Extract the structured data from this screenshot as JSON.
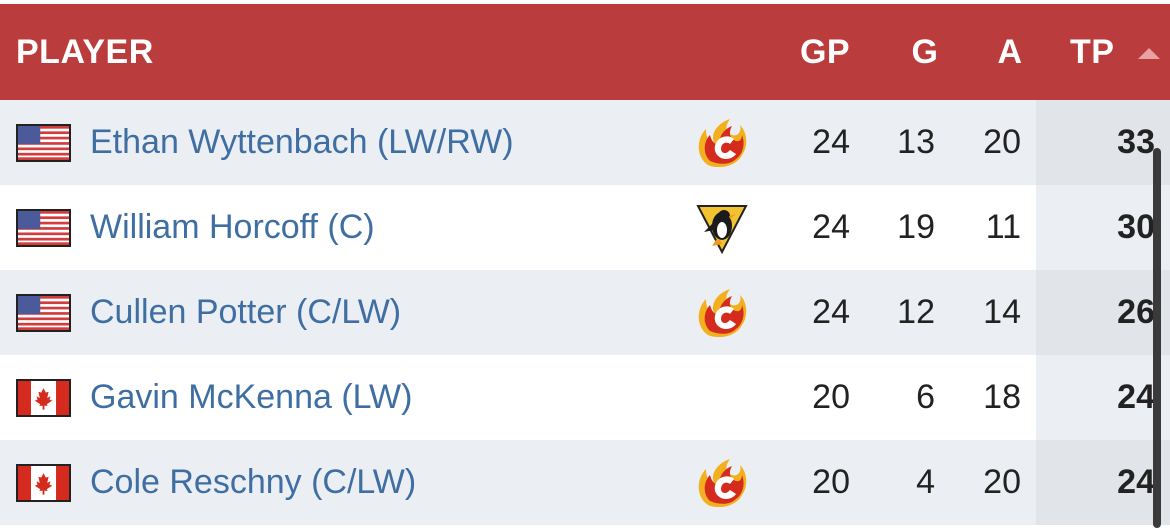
{
  "header": {
    "player": "PLAYER",
    "gp": "GP",
    "g": "G",
    "a": "A",
    "tp": "TP"
  },
  "colors": {
    "header_bg": "#bb3c3d",
    "name_link": "#3f6ea3",
    "row_shaded": "#ebeef2"
  },
  "rows": [
    {
      "flag": "usa-flag-icon",
      "name": "Ethan Wyttenbach (LW/RW)",
      "team_logo": "calgary-flames-logo",
      "gp": "24",
      "g": "13",
      "a": "20",
      "tp": "33"
    },
    {
      "flag": "usa-flag-icon",
      "name": "William Horcoff (C)",
      "team_logo": "pittsburgh-penguins-logo",
      "gp": "24",
      "g": "19",
      "a": "11",
      "tp": "30"
    },
    {
      "flag": "usa-flag-icon",
      "name": "Cullen Potter (C/LW)",
      "team_logo": "calgary-flames-logo",
      "gp": "24",
      "g": "12",
      "a": "14",
      "tp": "26"
    },
    {
      "flag": "canada-flag-icon",
      "name": "Gavin McKenna (LW)",
      "team_logo": "",
      "gp": "20",
      "g": "6",
      "a": "18",
      "tp": "24"
    },
    {
      "flag": "canada-flag-icon",
      "name": "Cole Reschny (C/LW)",
      "team_logo": "calgary-flames-logo",
      "gp": "20",
      "g": "4",
      "a": "20",
      "tp": "24"
    }
  ]
}
